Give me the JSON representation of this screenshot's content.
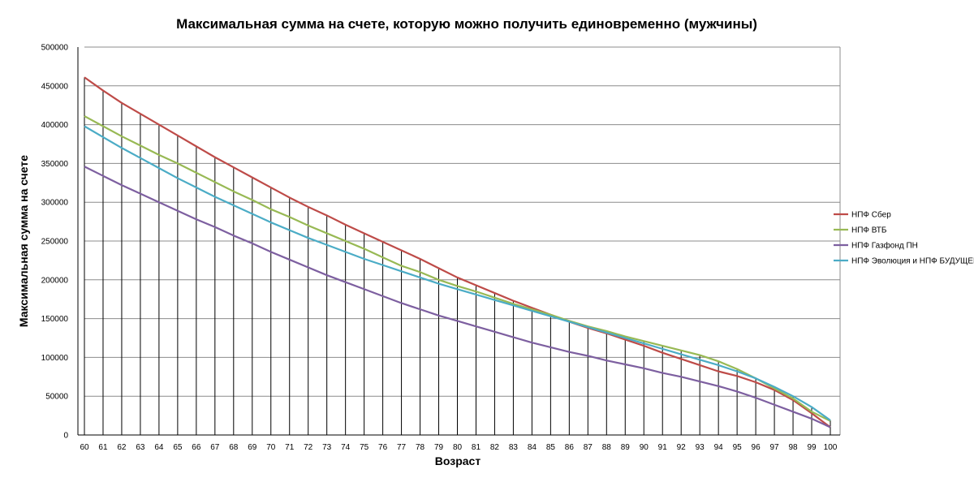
{
  "chart_data": {
    "type": "line",
    "title": "Максимальная сумма на счете, которую можно получить единовременно (мужчины)",
    "xlabel": "Возраст",
    "ylabel": "Максимальная сумма на счете",
    "x": [
      60,
      61,
      62,
      63,
      64,
      65,
      66,
      67,
      68,
      69,
      70,
      71,
      72,
      73,
      74,
      75,
      76,
      77,
      78,
      79,
      80,
      81,
      82,
      83,
      84,
      85,
      86,
      87,
      88,
      89,
      90,
      91,
      92,
      93,
      94,
      95,
      96,
      97,
      98,
      99,
      100
    ],
    "ylim": [
      0,
      500000
    ],
    "yticks": [
      "0",
      "50000",
      "100000",
      "150000",
      "200000",
      "250000",
      "300000",
      "350000",
      "400000",
      "450000",
      "500000"
    ],
    "grid": "horizontal",
    "drop_lines": true,
    "legend_position": "right",
    "series": [
      {
        "name": "НПФ Сбер",
        "color": "#BE4B48",
        "values": [
          461000,
          444000,
          428000,
          414000,
          400000,
          386000,
          372000,
          358000,
          345000,
          332000,
          319000,
          306000,
          294000,
          283000,
          271000,
          260000,
          249000,
          238000,
          227000,
          215000,
          203000,
          193000,
          183000,
          173000,
          164000,
          155000,
          146000,
          138000,
          131000,
          123000,
          115000,
          106000,
          98000,
          90000,
          82000,
          76000,
          68000,
          58000,
          45000,
          28000,
          10000
        ]
      },
      {
        "name": "НПФ ВТБ",
        "color": "#98B954",
        "values": [
          411000,
          398000,
          385000,
          373000,
          361000,
          350000,
          338000,
          326000,
          314000,
          303000,
          291000,
          281000,
          270000,
          260000,
          250000,
          240000,
          229000,
          218000,
          210000,
          200000,
          192000,
          185000,
          177000,
          169000,
          162000,
          155000,
          147000,
          140000,
          134000,
          127000,
          121000,
          115000,
          109000,
          103000,
          95000,
          85000,
          73000,
          60000,
          47000,
          30000,
          18000
        ]
      },
      {
        "name": "НПФ Газфонд ПН",
        "color": "#7D5FA0",
        "values": [
          346000,
          334000,
          322000,
          311000,
          300000,
          289000,
          278000,
          268000,
          257000,
          247000,
          236000,
          226000,
          216000,
          206000,
          197000,
          188000,
          179000,
          170000,
          162000,
          154000,
          147000,
          140000,
          133000,
          126000,
          119000,
          113000,
          107000,
          102000,
          96000,
          91000,
          86000,
          80000,
          75000,
          69000,
          63000,
          56000,
          48000,
          39000,
          30000,
          21000,
          10000
        ]
      },
      {
        "name": "НПФ Эволюция и НПФ БУДУЩЕЕ",
        "color": "#4BACC6",
        "values": [
          398000,
          384000,
          370000,
          357000,
          344000,
          331000,
          319000,
          307000,
          296000,
          285000,
          274000,
          264000,
          254000,
          245000,
          236000,
          227000,
          219000,
          211000,
          203000,
          195000,
          188000,
          181000,
          174000,
          167000,
          160000,
          153000,
          146000,
          139000,
          132000,
          125000,
          118000,
          111000,
          104000,
          97000,
          90000,
          82000,
          73000,
          62000,
          50000,
          36000,
          19000
        ]
      }
    ]
  }
}
